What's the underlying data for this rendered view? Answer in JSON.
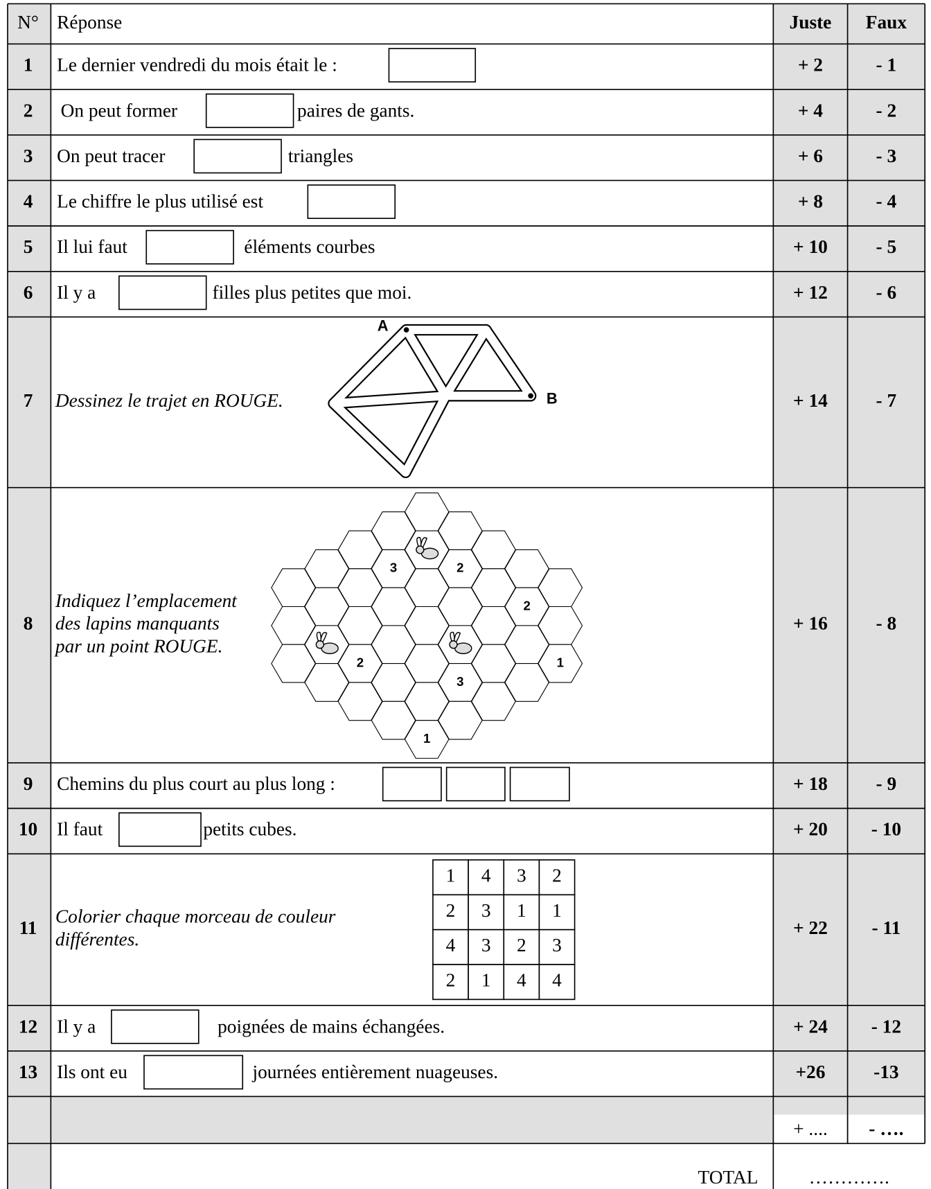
{
  "header": {
    "number": "N°",
    "answer": "Réponse",
    "correct": "Juste",
    "wrong": "Faux"
  },
  "rows": [
    {
      "number": "1",
      "before": "Le dernier vendredi du mois était le :",
      "correct": "+ 2",
      "wrong": "- 1"
    },
    {
      "number": "2",
      "before": "On peut former",
      "after": "paires de gants.",
      "correct": "+ 4",
      "wrong": "- 2"
    },
    {
      "number": "3",
      "before": "On peut tracer",
      "after": "triangles",
      "correct": "+ 6",
      "wrong": "- 3"
    },
    {
      "number": "4",
      "before": "Le chiffre le plus utilisé est",
      "correct": "+ 8",
      "wrong": "- 4"
    },
    {
      "number": "5",
      "before": "Il lui faut",
      "after": "éléments courbes",
      "correct": "+ 10",
      "wrong": "- 5"
    },
    {
      "number": "6",
      "before": "Il y a",
      "after": "filles plus petites que moi.",
      "correct": "+ 12",
      "wrong": "- 6"
    },
    {
      "number": "7",
      "lines": [
        "Dessinez le trajet en ROUGE."
      ],
      "points": [
        "A",
        "B"
      ],
      "correct": "+ 14",
      "wrong": "- 7"
    },
    {
      "number": "8",
      "lines": [
        "Indiquez l’emplacement",
        "des lapins manquants",
        "par un point ROUGE."
      ],
      "hex_labels": [
        "3",
        "2",
        "2",
        "2",
        "1",
        "3",
        "1"
      ],
      "correct": "+ 16",
      "wrong": "- 8"
    },
    {
      "number": "9",
      "before": "Chemins du plus court au plus long :",
      "correct": "+ 18",
      "wrong": "- 9"
    },
    {
      "number": "10",
      "before": "Il faut",
      "after": "petits cubes.",
      "correct": "+ 20",
      "wrong": "- 10"
    },
    {
      "number": "11",
      "lines": [
        "Colorier chaque morceau de couleur",
        "différentes."
      ],
      "grid": [
        [
          "1",
          "4",
          "3",
          "2"
        ],
        [
          "2",
          "3",
          "1",
          "1"
        ],
        [
          "4",
          "3",
          "2",
          "3"
        ],
        [
          "2",
          "1",
          "4",
          "4"
        ]
      ],
      "correct": "+ 22",
      "wrong": "- 11"
    },
    {
      "number": "12",
      "before": "Il y a",
      "after": "poignées de mains échangées.",
      "correct": "+ 24",
      "wrong": "- 12"
    },
    {
      "number": "13",
      "before": "Ils ont eu",
      "after": "journées entièrement nuageuses.",
      "correct": "+26",
      "wrong": "-13"
    }
  ],
  "summary": {
    "correct": "+ ....",
    "wrong": "- …."
  },
  "total": {
    "label": "TOTAL",
    "value": "…………."
  }
}
